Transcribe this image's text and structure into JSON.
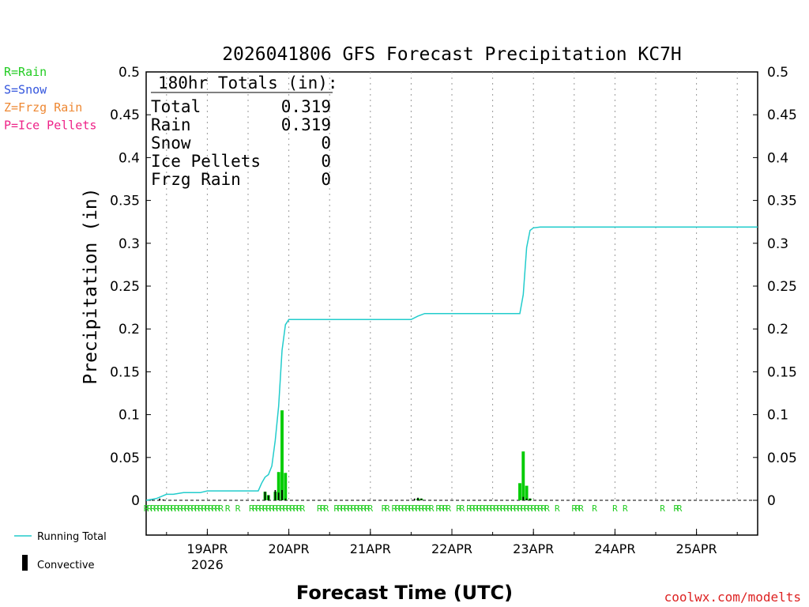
{
  "chart_data": {
    "type": "bar",
    "title": "2026041806 GFS Forecast Precipitation KC7H",
    "xlabel": "Forecast Time (UTC)",
    "ylabel": "Precipitation (in)",
    "ylim": [
      0,
      0.5
    ],
    "y_ticks": [
      "0",
      "0.05",
      "0.1",
      "0.15",
      "0.2",
      "0.25",
      "0.3",
      "0.35",
      "0.4",
      "0.45",
      "0.5"
    ],
    "x_ticks": [
      {
        "label": "19APR",
        "sub": "2026",
        "hour": 18
      },
      {
        "label": "20APR",
        "sub": "",
        "hour": 42
      },
      {
        "label": "21APR",
        "sub": "",
        "hour": 66
      },
      {
        "label": "22APR",
        "sub": "",
        "hour": 90
      },
      {
        "label": "23APR",
        "sub": "",
        "hour": 114
      },
      {
        "label": "24APR",
        "sub": "",
        "hour": 138
      },
      {
        "label": "25APR",
        "sub": "",
        "hour": 162
      }
    ],
    "x_range_hours": [
      0,
      180
    ],
    "grid": "vertical dotted",
    "precip_type_legend": [
      {
        "text": "R=Rain",
        "color": "#22cc22"
      },
      {
        "text": "S=Snow",
        "color": "#3355dd"
      },
      {
        "text": "Z=Frzg Rain",
        "color": "#ee8833"
      },
      {
        "text": "P=Ice Pellets",
        "color": "#ee2288"
      }
    ],
    "totals_box": {
      "heading": "180hr Totals (in):",
      "rows": [
        {
          "label": "Total",
          "value": "0.319"
        },
        {
          "label": "Rain",
          "value": "0.319"
        },
        {
          "label": "Snow",
          "value": "0"
        },
        {
          "label": "Ice Pellets",
          "value": "0"
        },
        {
          "label": "Frzg Rain",
          "value": "0"
        }
      ]
    },
    "series": [
      {
        "name": "Running Total",
        "kind": "line",
        "color": "#22cccc",
        "points": [
          [
            0,
            0
          ],
          [
            3,
            0.002
          ],
          [
            6,
            0.007
          ],
          [
            8,
            0.007
          ],
          [
            11,
            0.009
          ],
          [
            16,
            0.009
          ],
          [
            18,
            0.011
          ],
          [
            33,
            0.011
          ],
          [
            34,
            0.02
          ],
          [
            35,
            0.027
          ],
          [
            36,
            0.03
          ],
          [
            37,
            0.04
          ],
          [
            38,
            0.07
          ],
          [
            39,
            0.11
          ],
          [
            40,
            0.175
          ],
          [
            41,
            0.205
          ],
          [
            42,
            0.211
          ],
          [
            78,
            0.211
          ],
          [
            80,
            0.215
          ],
          [
            82,
            0.218
          ],
          [
            110,
            0.218
          ],
          [
            111,
            0.24
          ],
          [
            112,
            0.295
          ],
          [
            113,
            0.315
          ],
          [
            114,
            0.318
          ],
          [
            116,
            0.319
          ],
          [
            180,
            0.319
          ]
        ]
      },
      {
        "name": "Precipitation",
        "kind": "bar",
        "color": "#00cc00",
        "bars": [
          [
            35,
            0.01
          ],
          [
            36,
            0.006
          ],
          [
            38,
            0.01
          ],
          [
            39,
            0.033
          ],
          [
            40,
            0.105
          ],
          [
            41,
            0.032
          ],
          [
            80,
            0.002
          ],
          [
            81,
            0.002
          ],
          [
            110,
            0.02
          ],
          [
            111,
            0.057
          ],
          [
            112,
            0.017
          ],
          [
            113,
            0.002
          ]
        ]
      },
      {
        "name": "Convective",
        "kind": "bar",
        "color": "#000000",
        "bars": [
          [
            1,
            0.001
          ],
          [
            4,
            0.002
          ],
          [
            5,
            0.001
          ],
          [
            35,
            0.01
          ],
          [
            36,
            0.006
          ],
          [
            38,
            0.012
          ],
          [
            39,
            0.009
          ],
          [
            40,
            0.012
          ],
          [
            41,
            0.002
          ],
          [
            79,
            0.002
          ],
          [
            80,
            0.003
          ],
          [
            81,
            0.002
          ],
          [
            111,
            0.004
          ],
          [
            112,
            0.002
          ],
          [
            113,
            0.002
          ]
        ]
      }
    ],
    "rain_markers_hours": [
      0,
      1,
      2,
      3,
      4,
      5,
      6,
      7,
      8,
      9,
      10,
      11,
      12,
      13,
      14,
      15,
      16,
      17,
      18,
      19,
      20,
      21,
      22,
      24,
      27,
      31,
      32,
      33,
      34,
      35,
      36,
      37,
      38,
      39,
      40,
      41,
      42,
      43,
      44,
      45,
      46,
      51,
      52,
      53,
      56,
      57,
      58,
      59,
      60,
      61,
      62,
      63,
      64,
      65,
      66,
      70,
      71,
      73,
      74,
      75,
      76,
      77,
      78,
      79,
      80,
      81,
      82,
      83,
      84,
      86,
      87,
      88,
      89,
      92,
      93,
      95,
      96,
      97,
      98,
      99,
      100,
      101,
      102,
      103,
      104,
      105,
      106,
      107,
      108,
      109,
      110,
      111,
      112,
      113,
      114,
      115,
      116,
      117,
      118,
      121,
      126,
      127,
      128,
      132,
      138,
      141,
      152,
      156,
      157
    ],
    "rain_marker_text": "R",
    "rain_marker_color": "#22cc22",
    "legend_running_total": "Running Total",
    "legend_convective": "Convective",
    "credit": "coolwx.com/modelts",
    "credit_color": "#dd2222"
  }
}
